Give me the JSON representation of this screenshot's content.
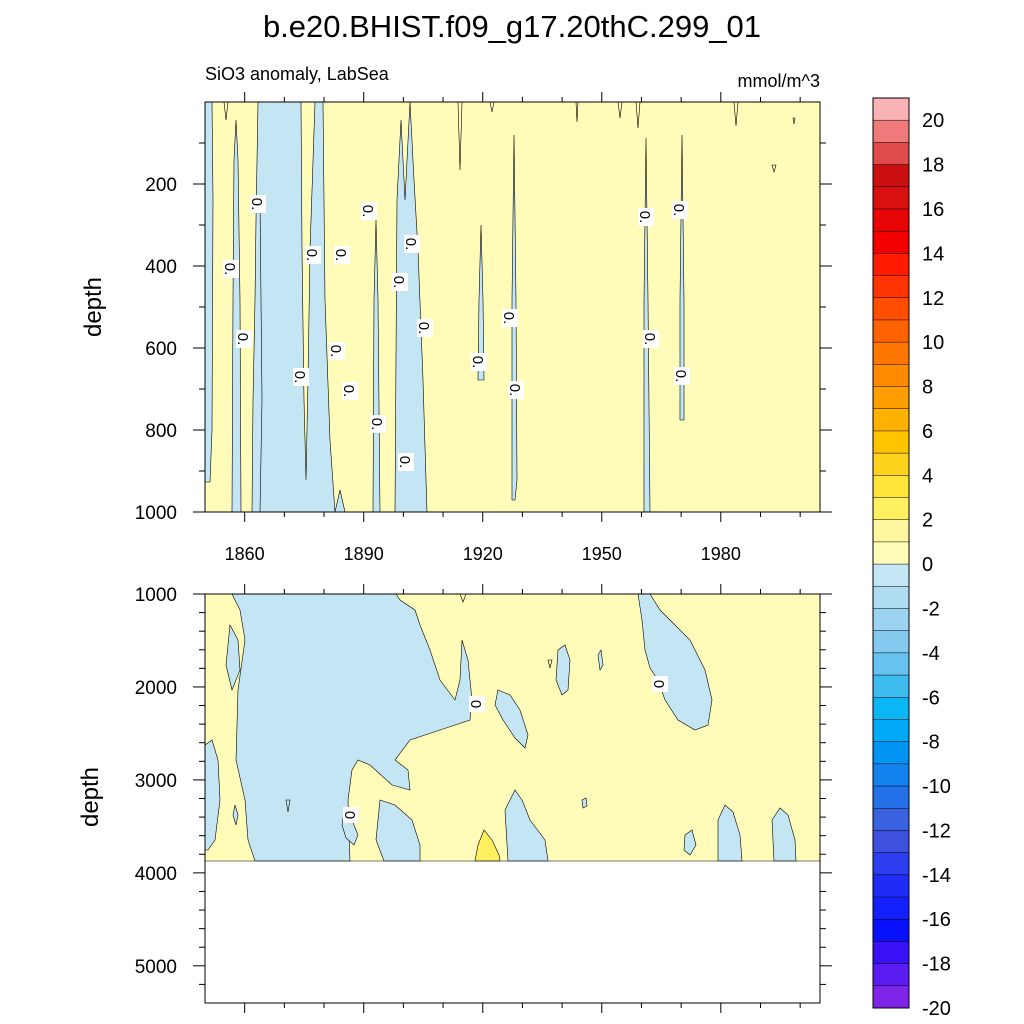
{
  "title": "b.e20.BHIST.f09_g17.20thC.299_01",
  "chart_data": [
    {
      "type": "contour",
      "panel": "upper",
      "subtitle": "SiO3 anomaly, LabSea",
      "units": "mmol/m^3",
      "ylabel": "depth",
      "ylim": [
        1000,
        0
      ],
      "xlim": [
        1850,
        2005
      ],
      "x_ticks": [
        1860,
        1890,
        1920,
        1950,
        1980
      ],
      "y_ticks": [
        200,
        400,
        600,
        800,
        1000
      ],
      "background_value": "0 to 2",
      "contour_label": "0.",
      "negative_regions": [
        {
          "x": [
            1850.5,
            1852.5
          ],
          "ylim": [
            0,
            920
          ]
        },
        {
          "x": [
            1858,
            1859.3
          ],
          "ylim": [
            50,
            1000
          ]
        },
        {
          "x": [
            1861,
            1890
          ],
          "ylim": [
            0,
            1000
          ]
        },
        {
          "x": [
            1893,
            1894.5
          ],
          "ylim": [
            200,
            1000
          ]
        },
        {
          "x": [
            1899,
            1906
          ],
          "ylim": [
            100,
            1000
          ]
        },
        {
          "x": [
            1919.5,
            1920.5
          ],
          "ylim": [
            200,
            680
          ]
        },
        {
          "x": [
            1928,
            1929
          ],
          "ylim": [
            80,
            960
          ]
        },
        {
          "x": [
            1961.5,
            1963
          ],
          "ylim": [
            90,
            1000
          ]
        },
        {
          "x": [
            1970.3,
            1971.1
          ],
          "ylim": [
            80,
            770
          ]
        }
      ]
    },
    {
      "type": "contour",
      "panel": "lower",
      "ylabel": "depth",
      "ylim": [
        5400,
        1000
      ],
      "xlim": [
        1850,
        2005
      ],
      "y_ticks": [
        1000,
        2000,
        3000,
        4000,
        5000
      ],
      "data_bottom": 3870,
      "contour_label": "0"
    }
  ],
  "colorbar": {
    "labels": [
      "20",
      "18",
      "16",
      "14",
      "12",
      "10",
      "8",
      "6",
      "4",
      "2",
      "0",
      "-2",
      "-4",
      "-6",
      "-8",
      "-10",
      "-12",
      "-14",
      "-16",
      "-18",
      "-20"
    ],
    "colors": [
      "#f9b3b5",
      "#f07a7b",
      "#e14a4a",
      "#c90f10",
      "#d90f10",
      "#e80508",
      "#f20000",
      "#ff1a00",
      "#ff3400",
      "#ff4e00",
      "#ff6200",
      "#ff7700",
      "#ff8a00",
      "#ff9e00",
      "#ffb100",
      "#ffc300",
      "#ffd31d",
      "#ffe43a",
      "#fff060",
      "#fff6a0",
      "#fffbb8",
      "#c4e6f4",
      "#b0dcf2",
      "#9bd3f0",
      "#84c9ee",
      "#66c2ee",
      "#3dbcf0",
      "#0ab7f4",
      "#00aaf6",
      "#0095f5",
      "#1283ee",
      "#2470e8",
      "#3a62e0",
      "#3e50e0",
      "#2d3df0",
      "#1f2cf8",
      "#1320fc",
      "#0810fc",
      "#3a10f4",
      "#5a1cf0",
      "#7e24e8"
    ]
  }
}
